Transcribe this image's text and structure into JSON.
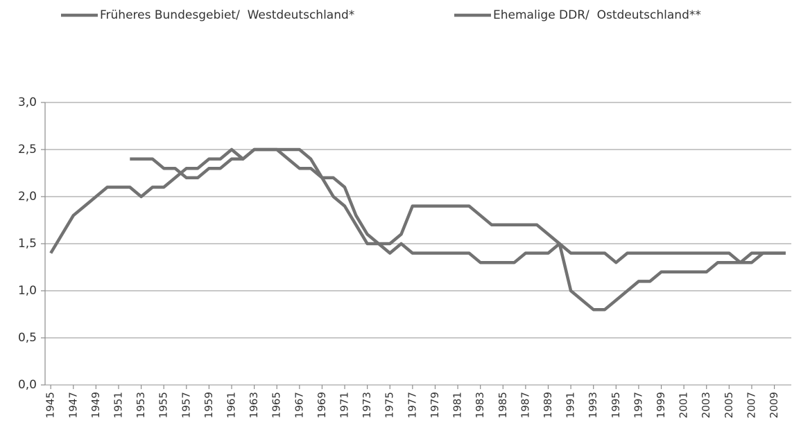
{
  "chart_data": {
    "type": "line",
    "x": [
      1945,
      1946,
      1947,
      1948,
      1949,
      1950,
      1951,
      1952,
      1953,
      1954,
      1955,
      1956,
      1957,
      1958,
      1959,
      1960,
      1961,
      1962,
      1963,
      1964,
      1965,
      1966,
      1967,
      1968,
      1969,
      1970,
      1971,
      1972,
      1973,
      1974,
      1975,
      1976,
      1977,
      1978,
      1979,
      1980,
      1981,
      1982,
      1983,
      1984,
      1985,
      1986,
      1987,
      1988,
      1989,
      1990,
      1991,
      1992,
      1993,
      1994,
      1995,
      1996,
      1997,
      1998,
      1999,
      2000,
      2001,
      2002,
      2003,
      2004,
      2005,
      2006,
      2007,
      2008,
      2009,
      2010
    ],
    "series": [
      {
        "name": "Früheres Bundesgebiet/  Westdeutschland*",
        "color": "#727272",
        "values": [
          1.4,
          1.6,
          1.8,
          1.9,
          2.0,
          2.1,
          2.1,
          2.1,
          2.0,
          2.1,
          2.1,
          2.2,
          2.3,
          2.3,
          2.4,
          2.4,
          2.5,
          2.4,
          2.5,
          2.5,
          2.5,
          2.4,
          2.3,
          2.3,
          2.2,
          2.0,
          1.9,
          1.7,
          1.5,
          1.5,
          1.4,
          1.5,
          1.4,
          1.4,
          1.4,
          1.4,
          1.4,
          1.4,
          1.3,
          1.3,
          1.3,
          1.3,
          1.4,
          1.4,
          1.4,
          1.5,
          1.4,
          1.4,
          1.4,
          1.4,
          1.3,
          1.4,
          1.4,
          1.4,
          1.4,
          1.4,
          1.4,
          1.4,
          1.4,
          1.4,
          1.4,
          1.3,
          1.4,
          1.4,
          1.4,
          1.4
        ]
      },
      {
        "name": "Ehemalige DDR/  Ostdeutschland**",
        "color": "#727272",
        "values": [
          null,
          null,
          null,
          null,
          null,
          null,
          null,
          2.4,
          2.4,
          2.4,
          2.3,
          2.3,
          2.2,
          2.2,
          2.3,
          2.3,
          2.4,
          2.4,
          2.5,
          2.5,
          2.5,
          2.5,
          2.5,
          2.4,
          2.2,
          2.2,
          2.1,
          1.8,
          1.6,
          1.5,
          1.5,
          1.6,
          1.9,
          1.9,
          1.9,
          1.9,
          1.9,
          1.9,
          1.8,
          1.7,
          1.7,
          1.7,
          1.7,
          1.7,
          1.6,
          1.5,
          1.0,
          0.9,
          0.8,
          0.8,
          0.9,
          1.0,
          1.1,
          1.1,
          1.2,
          1.2,
          1.2,
          1.2,
          1.2,
          1.3,
          1.3,
          1.3,
          1.3,
          1.4,
          1.4,
          1.4
        ]
      }
    ],
    "xlim": [
      1944.5,
      2010.5
    ],
    "xticks": [
      1945,
      1947,
      1949,
      1951,
      1953,
      1955,
      1957,
      1959,
      1961,
      1963,
      1965,
      1967,
      1969,
      1971,
      1973,
      1975,
      1977,
      1979,
      1981,
      1983,
      1985,
      1987,
      1989,
      1991,
      1993,
      1995,
      1997,
      1999,
      2001,
      2003,
      2005,
      2007,
      2009
    ],
    "ylim": [
      0,
      3
    ],
    "yticks": [
      {
        "value": 0,
        "label": "0,0"
      },
      {
        "value": 0.5,
        "label": "0,5"
      },
      {
        "value": 1,
        "label": "1,0"
      },
      {
        "value": 1.5,
        "label": "1,5"
      },
      {
        "value": 2,
        "label": "2,0"
      },
      {
        "value": 2.5,
        "label": "2,5"
      },
      {
        "value": 3,
        "label": "3,0"
      }
    ],
    "grid": true,
    "legend": "top"
  }
}
